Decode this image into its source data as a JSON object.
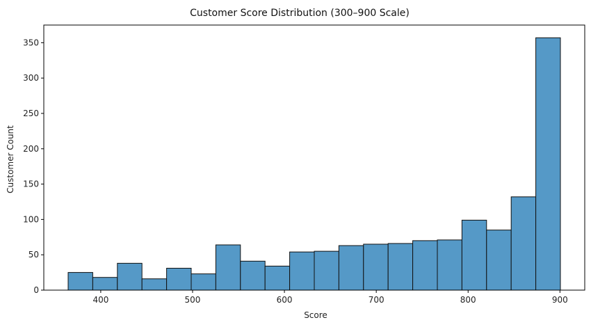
{
  "chart_data": {
    "type": "bar",
    "title": "Customer Score Distribution (300–900 Scale)",
    "xlabel": "Score",
    "ylabel": "Customer Count",
    "xlim": [
      338,
      927
    ],
    "ylim": [
      0,
      375
    ],
    "xticks": [
      400,
      500,
      600,
      700,
      800,
      900
    ],
    "yticks": [
      0,
      50,
      100,
      150,
      200,
      250,
      300,
      350
    ],
    "bin_edges": [
      364.5,
      391.3,
      418.1,
      444.9,
      471.7,
      498.5,
      525.3,
      552.1,
      578.9,
      605.7,
      632.5,
      659.3,
      686.1,
      712.9,
      739.7,
      766.5,
      793.3,
      820.1,
      846.9,
      873.7,
      900.5
    ],
    "values": [
      25,
      18,
      38,
      16,
      31,
      23,
      64,
      41,
      34,
      54,
      55,
      63,
      65,
      66,
      70,
      71,
      99,
      85,
      132,
      357
    ],
    "bar_color": "#5599c7",
    "edge_color": "#111111",
    "grid": false,
    "legend": "none"
  }
}
